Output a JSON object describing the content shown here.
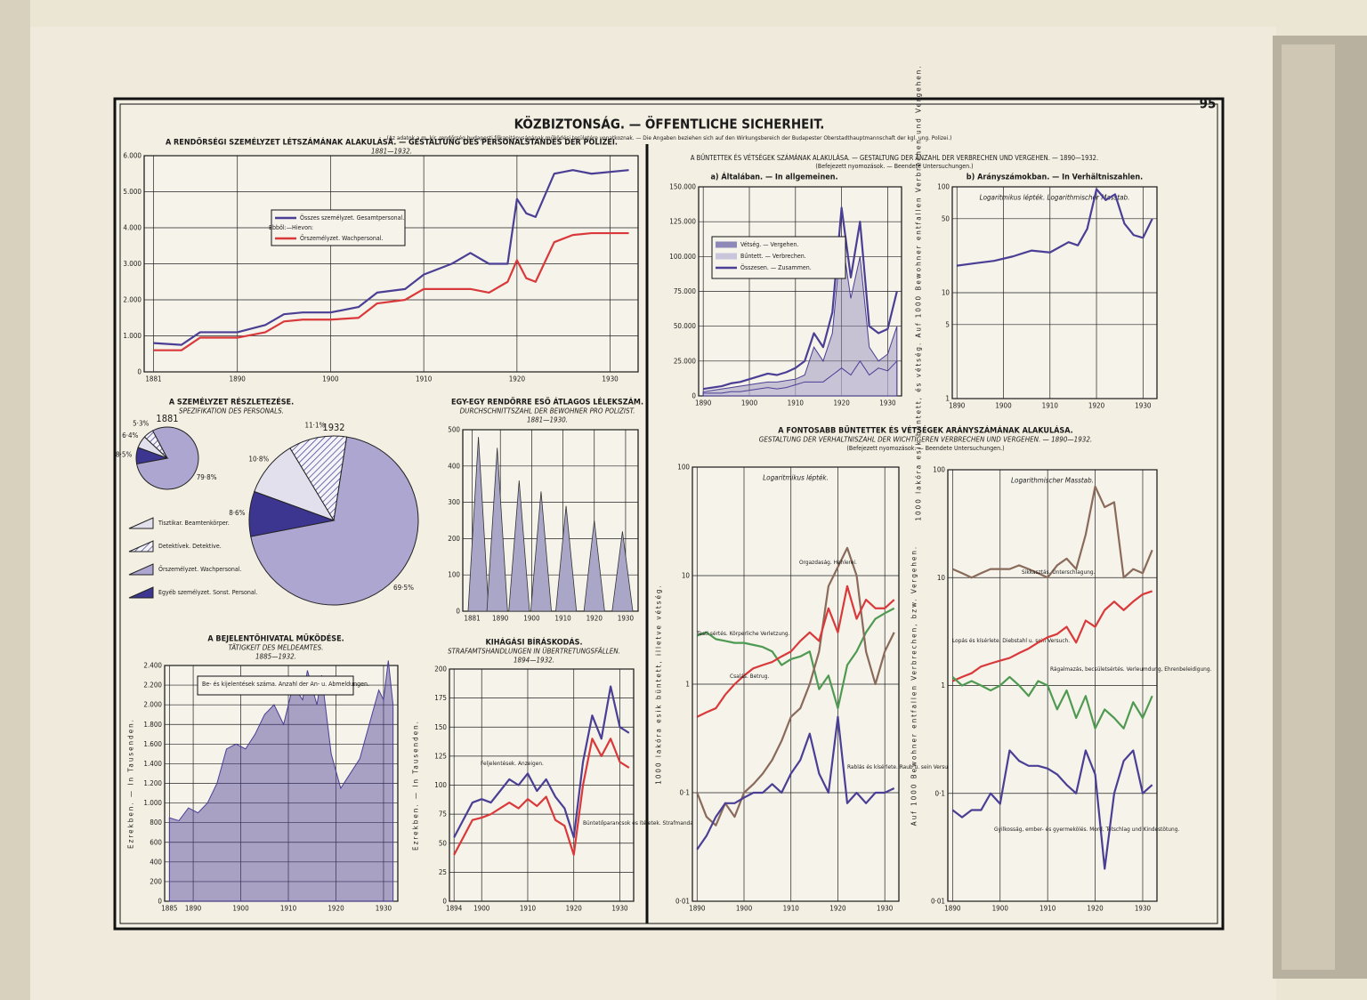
{
  "page": {
    "number": "95",
    "title": "KÖZBIZTONSÁG. — ÖFFENTLICHE SICHERHEIT.",
    "note": "(Az adatok a m. kir. rendőrség budapesti főkapitányságának működési területére vonatkoznak. — Die Angaben beziehen sich auf den Wirkungsbereich der Budapester Oberstadthauptmannschaft der kgl. ung. Polizei.)",
    "crime_title": "A BŰNTETTEK ÉS VÉTSÉGEK SZÁMÁNAK ALAKULÁSA. — GESTALTUNG DER ANZAHL DER VERBRECHEN UND VERGEHEN. — 1890—1932.",
    "crime_note": "(Befejezett nyomozások. — Beendete Untersuchungen.)",
    "ratio_title": "A FONTOSABB BŰNTETTEK ÉS VÉTSÉGEK ARÁNYSZÁMÁNAK ALAKULÁSA.",
    "ratio_subtitle": "GESTALTUNG DER VERHALTNISZAHL DER WICHTIGEREN VERBRECHEN UND VERGEHEN. — 1890—1932.",
    "ratio_note": "(Befejezett nyomozások. — Beendete Untersuchungen.)"
  },
  "chart_data": [
    {
      "type": "line",
      "title": "A RENDŐRSÉGI SZEMÉLYZET LÉTSZÁMÁNAK ALAKULÁSA. — GESTALTUNG DES PERSONALSTANDES DER POLIZEI.",
      "subtitle": "1881—1932.",
      "legend_note": "Ebből:—Hievon:",
      "grid": true,
      "x": [
        1881,
        1884,
        1886,
        1890,
        1893,
        1895,
        1897,
        1900,
        1903,
        1905,
        1908,
        1910,
        1913,
        1915,
        1917,
        1919,
        1920,
        1921,
        1922,
        1924,
        1926,
        1928,
        1932
      ],
      "xlim": [
        1880,
        1933
      ],
      "xticks": [
        1881,
        1890,
        1900,
        1910,
        1920,
        1930
      ],
      "ylim": [
        0,
        6000
      ],
      "yticks": [
        0,
        {
          "value": 1000,
          "label": "1.000"
        },
        {
          "value": 2000,
          "label": "2.000"
        },
        {
          "value": 3000,
          "label": "3.000"
        },
        {
          "value": 4000,
          "label": "4.000"
        },
        {
          "value": 5000,
          "label": "5.000"
        },
        {
          "value": 6000,
          "label": "6.000"
        }
      ],
      "series": [
        {
          "name": "Összes személyzet. Gesamtpersonal.",
          "color": "#4a3f95",
          "values": [
            800,
            750,
            1100,
            1100,
            1300,
            1600,
            1650,
            1650,
            1800,
            2200,
            2300,
            2700,
            3000,
            3300,
            3000,
            3000,
            4800,
            4400,
            4300,
            5500,
            5600,
            5500,
            5600
          ]
        },
        {
          "name": "Őrszemélyzet. Wachpersonal.",
          "color": "#d9393a",
          "values": [
            600,
            600,
            950,
            950,
            1100,
            1400,
            1450,
            1450,
            1500,
            1900,
            2000,
            2300,
            2300,
            2300,
            2200,
            2500,
            3100,
            2600,
            2500,
            3600,
            3800,
            3850,
            3850
          ]
        }
      ]
    },
    {
      "type": "pie",
      "title": "A SZEMÉLYZET RÉSZLETEZÉSE.",
      "subtitle": "SPEZIFIKATION DES PERSONALS.",
      "categories": [
        "Tisztikar. Beamtenkörper.",
        "Detektívek. Detektive.",
        "Őrszemélyzet. Wachpersonal.",
        "Egyéb személyzet. Sonst. Personal."
      ],
      "colors": [
        "#e2e0ec",
        "#f4f3f8",
        "#aca6d0",
        "#3d3690"
      ],
      "hatch": [
        false,
        true,
        false,
        true
      ],
      "series": [
        {
          "name": "1881",
          "values": [
            6.4,
            5.3,
            79.8,
            8.5
          ],
          "value_labels": [
            "6·4%",
            "5·3%",
            "79·8%",
            "8·5%"
          ]
        },
        {
          "name": "1932",
          "values": [
            10.8,
            11.1,
            69.5,
            8.6
          ],
          "value_labels": [
            "10·8%",
            "11·1%",
            "69·5%",
            "8·6%"
          ]
        }
      ]
    },
    {
      "type": "area",
      "title": "EGY-EGY RENDŐRRE ESŐ ÁTLAGOS LÉLEKSZÁM.",
      "subtitle": "DURCHSCHNITTSZAHL DER BEWOHNER PRO POLIZIST.",
      "period": "1881—1930.",
      "color": "#aaa6c8",
      "grid": true,
      "x": [
        1883,
        1889,
        1896,
        1903,
        1911,
        1920,
        1929
      ],
      "values": [
        480,
        450,
        360,
        330,
        290,
        250,
        220
      ],
      "xlim": [
        1878,
        1934
      ],
      "xticks": [
        1881,
        1890,
        1900,
        1910,
        1920,
        1930
      ],
      "ylim": [
        0,
        500
      ],
      "yticks": [
        0,
        100,
        200,
        300,
        400,
        500
      ]
    },
    {
      "type": "line",
      "title": "A BEJELENTŐHIVATAL MŰKÖDÉSE.",
      "subtitle": "TÄTIGKEIT DES MELDEAMTES.",
      "period": "1885—1932.",
      "ylabel": "Ezrekben. — In Tausenden.",
      "grid": true,
      "x": [
        1885,
        1887,
        1889,
        1891,
        1893,
        1895,
        1897,
        1899,
        1901,
        1903,
        1905,
        1907,
        1909,
        1911,
        1913,
        1914,
        1916,
        1917,
        1919,
        1921,
        1923,
        1925,
        1927,
        1929,
        1930,
        1931,
        1932
      ],
      "xlim": [
        1884,
        1933
      ],
      "xticks": [
        1885,
        1890,
        1900,
        1910,
        1920,
        1930
      ],
      "ylim": [
        0,
        2400
      ],
      "yticks": [
        0,
        200,
        400,
        600,
        800,
        {
          "value": 1000,
          "label": "1.000"
        },
        {
          "value": 1200,
          "label": "1.200"
        },
        {
          "value": 1400,
          "label": "1.400"
        },
        {
          "value": 1600,
          "label": "1.600"
        },
        {
          "value": 1800,
          "label": "1.800"
        },
        {
          "value": 2000,
          "label": "2.000"
        },
        {
          "value": 2200,
          "label": "2.200"
        },
        {
          "value": 2400,
          "label": "2.400"
        }
      ],
      "series": [
        {
          "name": "Be- és kijelentések száma. Anzahl der An- u. Abmeldungen.",
          "color": "#4a3f95",
          "fill": true,
          "values": [
            850,
            820,
            950,
            900,
            1000,
            1200,
            1550,
            1600,
            1550,
            1700,
            1900,
            2000,
            1800,
            2200,
            2050,
            2350,
            2000,
            2300,
            1500,
            1150,
            1300,
            1450,
            1800,
            2150,
            2050,
            2450,
            2000
          ]
        }
      ]
    },
    {
      "type": "line",
      "title": "KIHÁGÁSI BÍRÁSKODÁS.",
      "subtitle": "STRAFAMTSHANDLUNGEN IN ÜBERTRETUNGSFÄLLEN.",
      "period": "1894—1932.",
      "ylabel": "Ezrekben. — In Tausenden.",
      "grid": true,
      "x": [
        1894,
        1896,
        1898,
        1900,
        1902,
        1904,
        1906,
        1908,
        1910,
        1912,
        1914,
        1916,
        1918,
        1920,
        1922,
        1924,
        1926,
        1928,
        1930,
        1932
      ],
      "xlim": [
        1893,
        1933
      ],
      "xticks": [
        1894,
        1900,
        1910,
        1920,
        1930
      ],
      "ylim": [
        0,
        200
      ],
      "yticks": [
        0,
        25,
        50,
        75,
        100,
        125,
        150,
        175,
        200
      ],
      "series": [
        {
          "name": "Feljelentések. Anzeigen.",
          "color": "#4a3f95",
          "values": [
            55,
            70,
            85,
            88,
            85,
            95,
            105,
            100,
            110,
            95,
            105,
            90,
            80,
            55,
            120,
            160,
            140,
            185,
            150,
            145
          ]
        },
        {
          "name": "Büntetőparancsok és ítéletek. Strafmandate und Urteile.",
          "color": "#d9393a",
          "values": [
            40,
            55,
            70,
            72,
            75,
            80,
            85,
            80,
            88,
            82,
            90,
            70,
            65,
            40,
            100,
            140,
            125,
            140,
            120,
            115
          ]
        }
      ]
    },
    {
      "type": "line",
      "title": "a) Általában. — In allgemeinen.",
      "grid": true,
      "x": [
        1890,
        1892,
        1894,
        1896,
        1898,
        1900,
        1902,
        1904,
        1906,
        1908,
        1910,
        1912,
        1914,
        1916,
        1918,
        1920,
        1922,
        1924,
        1926,
        1928,
        1930,
        1932
      ],
      "xlim": [
        1889,
        1933
      ],
      "xticks": [
        1890,
        1900,
        1910,
        1920,
        1930
      ],
      "ylim": [
        0,
        150000
      ],
      "yticks": [
        0,
        {
          "value": 25000,
          "label": "25.000"
        },
        {
          "value": 50000,
          "label": "50.000"
        },
        {
          "value": 75000,
          "label": "75.000"
        },
        {
          "value": 100000,
          "label": "100.000"
        },
        {
          "value": 125000,
          "label": "125.000"
        },
        {
          "value": 150000,
          "label": "150.000"
        }
      ],
      "series": [
        {
          "name": "Vétség. — Vergehen.",
          "color": "#8e88b8",
          "fill": true,
          "values": [
            3000,
            4000,
            5000,
            6000,
            7000,
            8000,
            9000,
            10000,
            10000,
            11000,
            12000,
            15000,
            35000,
            25000,
            45000,
            115000,
            70000,
            100000,
            35000,
            25000,
            30000,
            50000
          ]
        },
        {
          "name": "Bűntett. — Verbrechen.",
          "color": "#c9c6dc",
          "fill": true,
          "values": [
            2000,
            2000,
            2000,
            3000,
            3000,
            4000,
            5000,
            6000,
            5000,
            6000,
            8000,
            10000,
            10000,
            10000,
            15000,
            20000,
            15000,
            25000,
            15000,
            20000,
            18000,
            25000
          ]
        },
        {
          "name": "Összesen. — Zusammen.",
          "color": "#4a3f95",
          "values": [
            5000,
            6000,
            7000,
            9000,
            10000,
            12000,
            14000,
            16000,
            15000,
            17000,
            20000,
            25000,
            45000,
            35000,
            60000,
            135000,
            85000,
            125000,
            50000,
            45000,
            48000,
            75000
          ]
        }
      ]
    },
    {
      "type": "line",
      "title": "b) Arányszámokban. — In Verhältniszahlen.",
      "annotation": "Logaritmikus lépték. Logarithmischer Masstab.",
      "ylabel": "1000 lakóra esik büntett, és vétség. Auf 1000 Bewohner entfallen Verbrechen und Vergehen.",
      "grid": true,
      "yscale": "log",
      "color": "#4a3f95",
      "x": [
        1890,
        1894,
        1898,
        1902,
        1906,
        1910,
        1914,
        1916,
        1918,
        1920,
        1922,
        1924,
        1926,
        1928,
        1930,
        1932
      ],
      "values": [
        18,
        19,
        20,
        22,
        25,
        24,
        30,
        28,
        40,
        95,
        75,
        85,
        45,
        35,
        33,
        50
      ],
      "xlim": [
        1889,
        1933
      ],
      "xticks": [
        1890,
        1900,
        1910,
        1920,
        1930
      ],
      "ylim": [
        1,
        100
      ],
      "yticks": [
        1,
        5,
        10,
        50,
        100
      ]
    },
    {
      "type": "line",
      "annotation": "Logaritmikus lépték.",
      "ylabel": "1000 lakóra esik büntett, illetve vétség.",
      "grid": true,
      "yscale": "log",
      "x": [
        1890,
        1892,
        1894,
        1896,
        1898,
        1900,
        1902,
        1904,
        1906,
        1908,
        1910,
        1912,
        1914,
        1916,
        1918,
        1920,
        1922,
        1924,
        1926,
        1928,
        1930,
        1932
      ],
      "xlim": [
        1889,
        1933
      ],
      "xticks": [
        1890,
        1900,
        1910,
        1920,
        1930
      ],
      "ylim": [
        0.01,
        100
      ],
      "yticks": [
        {
          "value": 0.01,
          "label": "0·01"
        },
        {
          "value": 0.1,
          "label": "0·1"
        },
        1,
        10,
        100
      ],
      "series": [
        {
          "name": "Testi sértés. Körperliche Verletzung.",
          "color": "#4f9a52",
          "values": [
            2.8,
            3,
            2.6,
            2.5,
            2.4,
            2.4,
            2.3,
            2.2,
            2.0,
            1.5,
            1.7,
            1.8,
            2.0,
            0.9,
            1.2,
            0.6,
            1.5,
            2,
            3,
            4,
            4.5,
            5
          ]
        },
        {
          "name": "Orgazdaság. Hehlerei.",
          "color": "#8a6a5a",
          "values": [
            0.1,
            0.06,
            0.05,
            0.08,
            0.06,
            0.1,
            0.12,
            0.15,
            0.2,
            0.3,
            0.5,
            0.6,
            1,
            2,
            8,
            12,
            18,
            10,
            2,
            1,
            2,
            3
          ]
        },
        {
          "name": "Csalás. Betrug.",
          "color": "#d9393a",
          "values": [
            0.5,
            0.55,
            0.6,
            0.8,
            1,
            1.2,
            1.4,
            1.5,
            1.6,
            1.8,
            2,
            2.5,
            3,
            2.5,
            5,
            3,
            8,
            4,
            6,
            5,
            5,
            6
          ]
        },
        {
          "name": "Rablás és kísérlete. Raub u. sein Versuch.",
          "color": "#4a3f95",
          "values": [
            0.03,
            0.04,
            0.06,
            0.08,
            0.08,
            0.09,
            0.1,
            0.1,
            0.12,
            0.1,
            0.15,
            0.2,
            0.35,
            0.15,
            0.1,
            0.5,
            0.08,
            0.1,
            0.08,
            0.1,
            0.1,
            0.11
          ]
        }
      ]
    },
    {
      "type": "line",
      "annotation": "Logarithmischer Masstab.",
      "ylabel": "Auf 1000 Bewohner entfallen Verbrechen, bzw. Vergehen.",
      "grid": true,
      "yscale": "log",
      "x": [
        1890,
        1892,
        1894,
        1896,
        1898,
        1900,
        1902,
        1904,
        1906,
        1908,
        1910,
        1912,
        1914,
        1916,
        1918,
        1920,
        1922,
        1924,
        1926,
        1928,
        1930,
        1932
      ],
      "xlim": [
        1889,
        1933
      ],
      "xticks": [
        1890,
        1900,
        1910,
        1920,
        1930
      ],
      "ylim": [
        0.01,
        100
      ],
      "yticks": [
        {
          "value": 0.01,
          "label": "0·01"
        },
        {
          "value": 0.1,
          "label": "0·1"
        },
        1,
        10,
        100
      ],
      "series": [
        {
          "name": "Lopás és kísérlete. Diebstahl u. sein Versuch.",
          "color": "#8a6a5a",
          "values": [
            12,
            11,
            10,
            11,
            12,
            12,
            12,
            13,
            12,
            11,
            10,
            13,
            15,
            12,
            25,
            70,
            45,
            50,
            10,
            12,
            11,
            18
          ]
        },
        {
          "name": "Sikkasztás. Unterschlagung.",
          "color": "#d9393a",
          "values": [
            1.1,
            1.2,
            1.3,
            1.5,
            1.6,
            1.7,
            1.8,
            2,
            2.2,
            2.5,
            2.8,
            3,
            3.5,
            2.5,
            4,
            3.5,
            5,
            6,
            5,
            6,
            7,
            7.5
          ]
        },
        {
          "name": "Rágalmazás, becsületsértés. Verleumdung, Ehrenbeleidigung.",
          "color": "#4f9a52",
          "values": [
            1.2,
            1,
            1.1,
            1,
            0.9,
            1,
            1.2,
            1,
            0.8,
            1.1,
            1,
            0.6,
            0.9,
            0.5,
            0.8,
            0.4,
            0.6,
            0.5,
            0.4,
            0.7,
            0.5,
            0.8
          ]
        },
        {
          "name": "Gyilkosság, ember- és gyermekölés. Mord, Totschlag und Kindestötung.",
          "color": "#4a3f95",
          "values": [
            0.07,
            0.06,
            0.07,
            0.07,
            0.1,
            0.08,
            0.25,
            0.2,
            0.18,
            0.18,
            0.17,
            0.15,
            0.12,
            0.1,
            0.25,
            0.15,
            0.02,
            0.1,
            0.2,
            0.25,
            0.1,
            0.12
          ]
        }
      ]
    }
  ]
}
